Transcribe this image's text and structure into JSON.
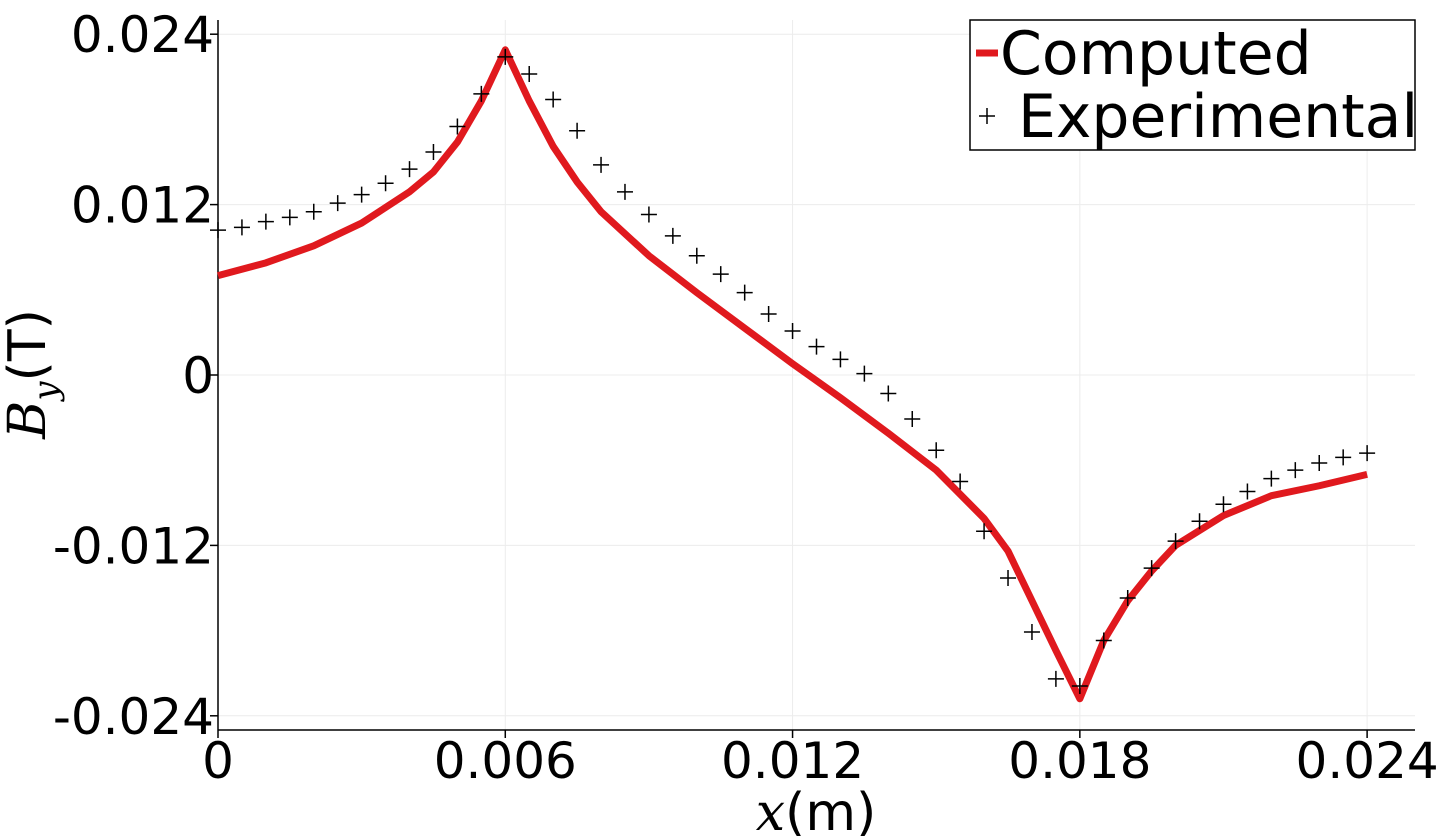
{
  "chart_data": {
    "type": "line",
    "xlabel": [
      "x",
      "(m)"
    ],
    "ylabel": [
      "B",
      "y",
      "(T)"
    ],
    "xlim": [
      0,
      0.025
    ],
    "ylim": [
      -0.025,
      0.025
    ],
    "xticks": [
      0,
      0.006,
      0.012,
      0.018,
      0.024
    ],
    "yticks": [
      -0.024,
      -0.012,
      0,
      0.012,
      0.024
    ],
    "grid": true,
    "legend": "upper right",
    "series": [
      {
        "name": "Computed",
        "type": "line",
        "color": "#e0191e",
        "x": [
          0,
          0.001,
          0.002,
          0.003,
          0.004,
          0.0045,
          0.005,
          0.0055,
          0.006,
          0.0065,
          0.007,
          0.0075,
          0.008,
          0.009,
          0.01,
          0.011,
          0.012,
          0.013,
          0.014,
          0.015,
          0.016,
          0.0165,
          0.017,
          0.0175,
          0.018,
          0.0185,
          0.019,
          0.0195,
          0.02,
          0.021,
          0.022,
          0.023,
          0.024
        ],
        "values": [
          0.007,
          0.0079,
          0.0091,
          0.0107,
          0.0129,
          0.0143,
          0.0164,
          0.0193,
          0.0229,
          0.0193,
          0.0161,
          0.0136,
          0.0115,
          0.0084,
          0.0058,
          0.0033,
          0.0008,
          -0.0016,
          -0.0041,
          -0.0067,
          -0.0101,
          -0.0124,
          -0.0159,
          -0.0194,
          -0.0228,
          -0.0187,
          -0.0159,
          -0.0138,
          -0.012,
          -0.0099,
          -0.0085,
          -0.0078,
          -0.007
        ]
      },
      {
        "name": "Experimental",
        "type": "scatter",
        "color": "#000000",
        "x": [
          0,
          0.0005,
          0.001,
          0.0015,
          0.002,
          0.0025,
          0.003,
          0.0035,
          0.004,
          0.0045,
          0.005,
          0.0055,
          0.006,
          0.0065,
          0.007,
          0.0075,
          0.008,
          0.0085,
          0.009,
          0.0095,
          0.01,
          0.0105,
          0.011,
          0.0115,
          0.012,
          0.0125,
          0.013,
          0.0135,
          0.014,
          0.0145,
          0.015,
          0.0155,
          0.016,
          0.0165,
          0.017,
          0.0175,
          0.018,
          0.0185,
          0.019,
          0.0195,
          0.02,
          0.0205,
          0.021,
          0.0215,
          0.022,
          0.0225,
          0.023,
          0.0235,
          0.024
        ],
        "values": [
          0.0102,
          0.0104,
          0.0108,
          0.0111,
          0.0115,
          0.0121,
          0.0127,
          0.0135,
          0.0145,
          0.0157,
          0.0175,
          0.0198,
          0.0224,
          0.0212,
          0.0194,
          0.0172,
          0.0148,
          0.0129,
          0.0113,
          0.0098,
          0.0084,
          0.0071,
          0.0058,
          0.0043,
          0.0031,
          0.002,
          0.0011,
          0.0001,
          -0.0013,
          -0.0031,
          -0.0053,
          -0.0075,
          -0.011,
          -0.0143,
          -0.0181,
          -0.0214,
          -0.0219,
          -0.0187,
          -0.0157,
          -0.0136,
          -0.0117,
          -0.0103,
          -0.0091,
          -0.0082,
          -0.0073,
          -0.0067,
          -0.0062,
          -0.0058,
          -0.0055
        ]
      }
    ]
  }
}
